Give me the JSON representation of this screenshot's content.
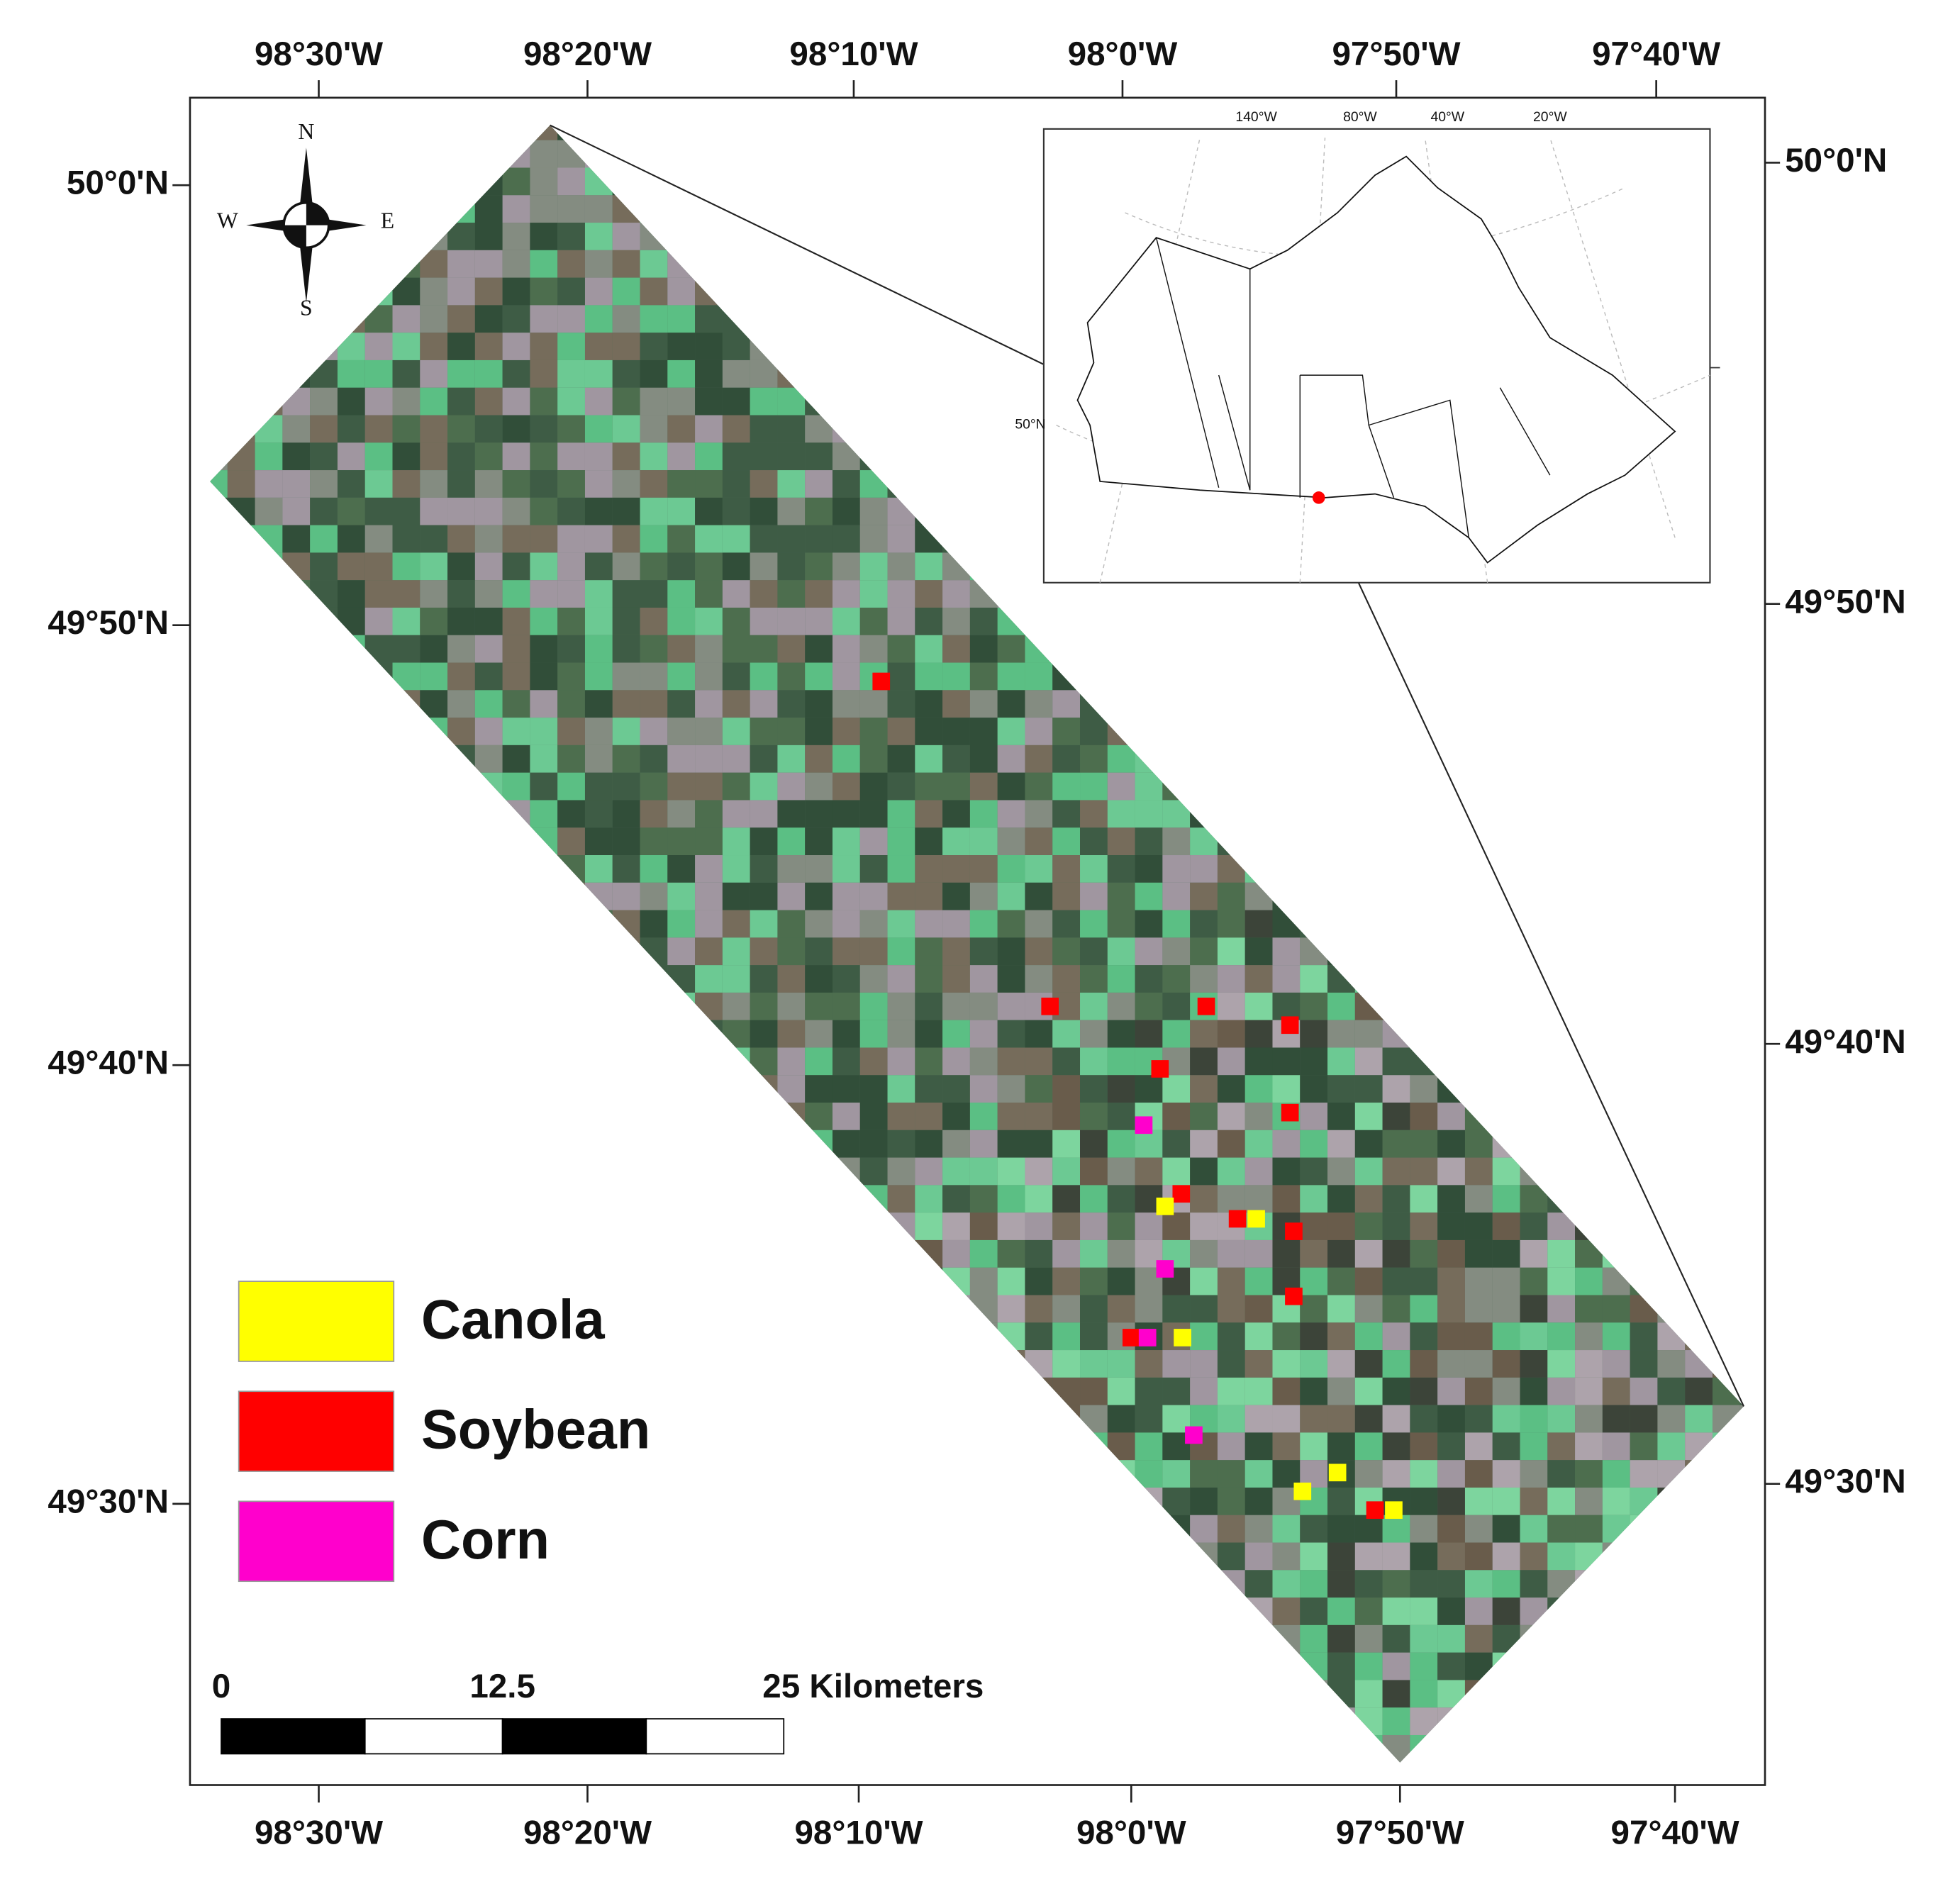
{
  "axes": {
    "top": [
      "98°30'W",
      "98°20'W",
      "98°10'W",
      "98°0'W",
      "97°50'W",
      "97°40'W"
    ],
    "bottom": [
      "98°30'W",
      "98°20'W",
      "98°10'W",
      "98°0'W",
      "97°50'W",
      "97°40'W"
    ],
    "left": [
      "50°0'N",
      "49°50'N",
      "49°40'N",
      "49°30'N"
    ],
    "right": [
      "50°0'N",
      "49°50'N",
      "49°40'N",
      "49°30'N"
    ]
  },
  "compass": {
    "north": "N",
    "south": "S",
    "west": "W",
    "east": "E"
  },
  "inset": {
    "longitude_labels": [
      "140°W",
      "80°W",
      "40°W",
      "20°W"
    ],
    "latitude_label": "50°N"
  },
  "legend": {
    "items": [
      {
        "label": "Canola",
        "color": "#ffff00"
      },
      {
        "label": "Soybean",
        "color": "#ff0000"
      },
      {
        "label": "Corn",
        "color": "#ff00cc"
      }
    ]
  },
  "scale_bar": {
    "labels": [
      "0",
      "12.5",
      "25 Kilometers"
    ]
  }
}
